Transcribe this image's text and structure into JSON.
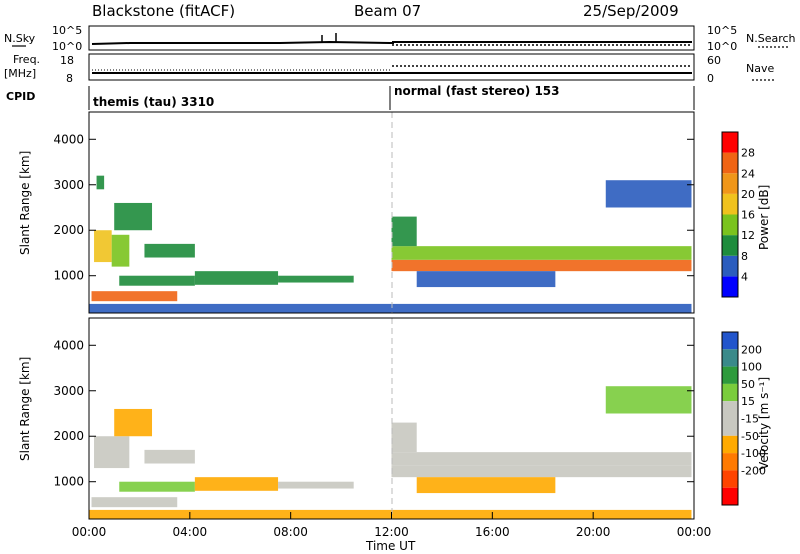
{
  "header": {
    "station": "Blackstone (fitACF)",
    "beam": "Beam 07",
    "date": "25/Sep/2009"
  },
  "params": {
    "nsky_label": "N.Sky",
    "nsky_ticks": [
      "10^5",
      "10^0"
    ],
    "nsearch_label": "N.Search",
    "nsearch_ticks": [
      "10^5",
      "10^0"
    ],
    "freq_label": "Freq.",
    "freq_unit": "[MHz]",
    "freq_ticks": [
      "18",
      "8"
    ],
    "nave_label": "Nave",
    "nave_ticks": [
      "60",
      "0"
    ],
    "cpid_label": "CPID",
    "cpid_segments": [
      {
        "name": "themis (tau) 3310",
        "start_hour": 0,
        "end_hour": 12
      },
      {
        "name": "normal (fast stereo) 153",
        "start_hour": 12,
        "end_hour": 24
      }
    ]
  },
  "colors": {
    "power_scale": [
      "#0000ff",
      "#2a5cbe",
      "#1e8c3c",
      "#7ac31e",
      "#f0c21e",
      "#f09619",
      "#f06414",
      "#ff0000"
    ],
    "velocity_scale": [
      "#2255cc",
      "#3a8a8a",
      "#2e9a3c",
      "#7acc3c",
      "#c8c8c0",
      "#c8c8c0",
      "#ffaa00",
      "#ff7a00",
      "#ff4400",
      "#ff0000"
    ]
  },
  "chart_data": [
    {
      "type": "heatmap",
      "panel": "power",
      "ylabel": "Slant Range [km]",
      "ylim": [
        180,
        4600
      ],
      "yticks": [
        "1000",
        "2000",
        "3000",
        "4000"
      ],
      "xlim": [
        0,
        24
      ],
      "colorbar": {
        "label": "Power [dB]",
        "ticks": [
          "4",
          "8",
          "12",
          "16",
          "20",
          "24",
          "28"
        ],
        "range": [
          0,
          32
        ]
      },
      "regions": [
        {
          "t0": 0.2,
          "t1": 0.9,
          "r0": 1300,
          "r1": 2000,
          "value": 18
        },
        {
          "t0": 0.9,
          "t1": 1.6,
          "r0": 1200,
          "r1": 1900,
          "value": 12
        },
        {
          "t0": 1.0,
          "t1": 2.5,
          "r0": 2000,
          "r1": 2600,
          "value": 8
        },
        {
          "t0": 0.1,
          "t1": 3.5,
          "r0": 440,
          "r1": 660,
          "value": 26
        },
        {
          "t0": 1.2,
          "t1": 4.2,
          "r0": 780,
          "r1": 1000,
          "value": 8
        },
        {
          "t0": 4.2,
          "t1": 7.5,
          "r0": 800,
          "r1": 1100,
          "value": 8
        },
        {
          "t0": 7.5,
          "t1": 10.5,
          "r0": 850,
          "r1": 1000,
          "value": 10
        },
        {
          "t0": 2.2,
          "t1": 4.2,
          "r0": 1400,
          "r1": 1700,
          "value": 8
        },
        {
          "t0": 0.3,
          "t1": 0.6,
          "r0": 2900,
          "r1": 3200,
          "value": 8
        },
        {
          "t0": 12.0,
          "t1": 23.9,
          "r0": 1100,
          "r1": 1350,
          "value": 24
        },
        {
          "t0": 12.0,
          "t1": 23.9,
          "r0": 1350,
          "r1": 1650,
          "value": 12
        },
        {
          "t0": 12.0,
          "t1": 13.0,
          "r0": 1650,
          "r1": 2300,
          "value": 8
        },
        {
          "t0": 13.0,
          "t1": 18.5,
          "r0": 750,
          "r1": 1100,
          "value": 6
        },
        {
          "t0": 20.5,
          "t1": 23.9,
          "r0": 2500,
          "r1": 3100,
          "value": 5
        },
        {
          "t0": 0.0,
          "t1": 23.9,
          "r0": 190,
          "r1": 380,
          "value": 4
        }
      ]
    },
    {
      "type": "heatmap",
      "panel": "velocity",
      "ylabel": "Slant Range [km]",
      "ylim": [
        180,
        4600
      ],
      "yticks": [
        "1000",
        "2000",
        "3000",
        "4000"
      ],
      "xlim": [
        0,
        24
      ],
      "xticks": [
        "00:00",
        "04:00",
        "08:00",
        "12:00",
        "16:00",
        "20:00",
        "00:00"
      ],
      "xlabel": "Time UT",
      "colorbar": {
        "label": "Velocity [m s⁻¹]",
        "ticks": [
          "200",
          "100",
          "50",
          "15",
          "-15",
          "-50",
          "-100",
          "-200"
        ],
        "range": [
          -250,
          250
        ]
      },
      "regions": [
        {
          "t0": 0.2,
          "t1": 1.6,
          "r0": 1300,
          "r1": 2000,
          "value": 0
        },
        {
          "t0": 1.0,
          "t1": 2.5,
          "r0": 2000,
          "r1": 2600,
          "value": -60
        },
        {
          "t0": 0.1,
          "t1": 3.5,
          "r0": 440,
          "r1": 660,
          "value": 0
        },
        {
          "t0": 1.2,
          "t1": 4.2,
          "r0": 780,
          "r1": 1000,
          "value": 60
        },
        {
          "t0": 4.2,
          "t1": 7.5,
          "r0": 800,
          "r1": 1100,
          "value": -60
        },
        {
          "t0": 7.5,
          "t1": 10.5,
          "r0": 850,
          "r1": 1000,
          "value": 0
        },
        {
          "t0": 2.2,
          "t1": 4.2,
          "r0": 1400,
          "r1": 1700,
          "value": 40
        },
        {
          "t0": 12.0,
          "t1": 23.9,
          "r0": 1100,
          "r1": 1350,
          "value": 0
        },
        {
          "t0": 12.0,
          "t1": 23.9,
          "r0": 1350,
          "r1": 1650,
          "value": 0
        },
        {
          "t0": 12.0,
          "t1": 13.0,
          "r0": 1650,
          "r1": 2300,
          "value": -30
        },
        {
          "t0": 13.0,
          "t1": 18.5,
          "r0": 750,
          "r1": 1100,
          "value": -60
        },
        {
          "t0": 20.5,
          "t1": 23.9,
          "r0": 2500,
          "r1": 3100,
          "value": 50
        },
        {
          "t0": 0.0,
          "t1": 23.9,
          "r0": 190,
          "r1": 380,
          "value": -60
        }
      ]
    }
  ]
}
